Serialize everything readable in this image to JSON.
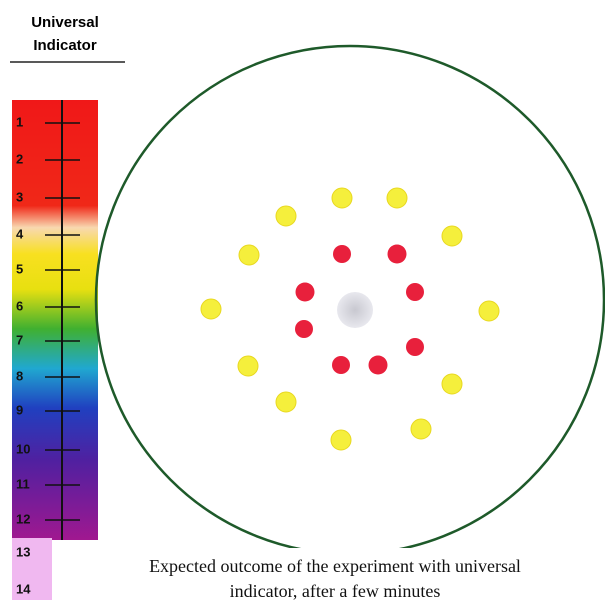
{
  "header": {
    "title_lines": [
      "Universal",
      "Indicator"
    ]
  },
  "scale": {
    "labels": [
      1,
      2,
      3,
      4,
      5,
      6,
      7,
      8,
      9,
      10,
      11,
      12,
      13,
      14
    ]
  },
  "caption": {
    "lines": [
      "Expected outcome of the experiment with universal",
      "indicator, after a few minutes"
    ]
  }
}
